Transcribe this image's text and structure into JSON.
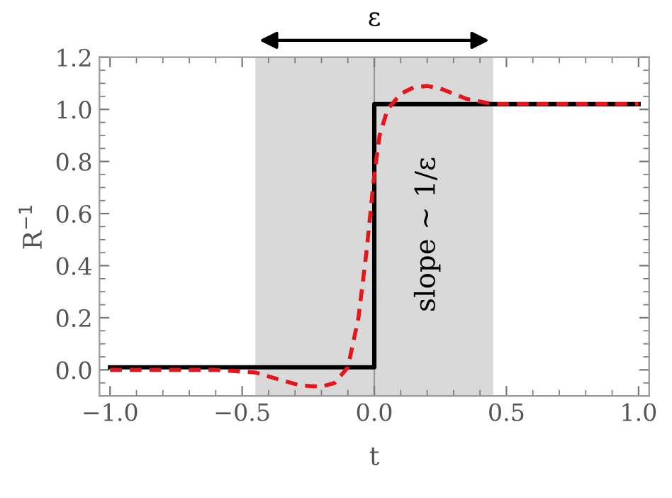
{
  "chart_data": {
    "type": "line",
    "xlabel": "t",
    "ylabel": "R$^{−1}$",
    "xlim": [
      -1.04,
      1.04
    ],
    "ylim": [
      -0.1,
      1.2
    ],
    "xticks": [
      {
        "value": -1.0,
        "label": "−1.0"
      },
      {
        "value": -0.5,
        "label": "−0.5"
      },
      {
        "value": 0,
        "label": "0.0"
      },
      {
        "value": 0.5,
        "label": "0.5"
      },
      {
        "value": 1.0,
        "label": "1.0"
      }
    ],
    "yticks": [
      {
        "value": 0,
        "label": "0.0"
      },
      {
        "value": 0.2,
        "label": "0.2"
      },
      {
        "value": 0.4,
        "label": "0.4"
      },
      {
        "value": 0.6,
        "label": "0.6"
      },
      {
        "value": 0.8,
        "label": "0.8"
      },
      {
        "value": 1.0,
        "label": "1.0"
      },
      {
        "value": 1.2,
        "label": "1.2"
      }
    ],
    "grid": false,
    "legend": false,
    "series": [
      {
        "color": "#000000",
        "line_style": "solid",
        "x": [
          -1.0,
          0.0,
          0.0,
          1.0
        ],
        "values": [
          0.01,
          0.01,
          1.02,
          1.02
        ]
      },
      {
        "color": "#e8141c",
        "line_style": "dashed",
        "x": [
          -1.0,
          -0.6,
          -0.45,
          -0.35,
          -0.28,
          -0.2,
          -0.15,
          -0.1,
          -0.06,
          -0.03,
          0.0,
          0.02,
          0.05,
          0.1,
          0.15,
          0.2,
          0.25,
          0.3,
          0.35,
          0.45,
          0.6,
          1.0
        ],
        "values": [
          0.0,
          0.0,
          -0.01,
          -0.04,
          -0.06,
          -0.065,
          -0.05,
          0.01,
          0.2,
          0.45,
          0.75,
          0.9,
          1.0,
          1.06,
          1.085,
          1.09,
          1.08,
          1.06,
          1.04,
          1.02,
          1.02,
          1.02
        ]
      }
    ],
    "bands": [
      {
        "axis": "x",
        "from": -0.45,
        "to": 0.45,
        "color": "#d9d9d9"
      }
    ],
    "ref_lines": [
      {
        "axis": "x",
        "value": 0,
        "color": "#999999"
      }
    ],
    "annotations": [
      "ε",
      "slope ∼ 1/ε"
    ]
  }
}
